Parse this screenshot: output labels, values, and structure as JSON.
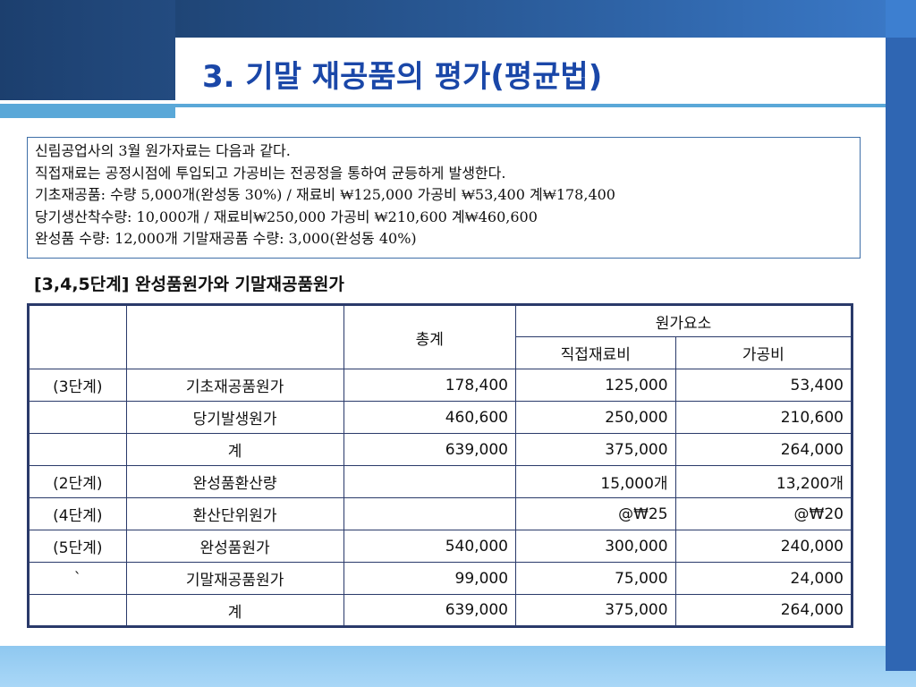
{
  "title": "3. 기말 재공품의 평가(평균법)",
  "info_lines": [
    "신림공업사의 3월 원가자료는 다음과 같다.",
    "직접재료는 공정시점에 투입되고 가공비는 전공정을 통하여 균등하게 발생한다.",
    "기초재공품: 수량 5,000개(완성동 30%) / 재료비 ₩125,000  가공비 ₩53,400  계₩178,400",
    "당기생산착수량: 10,000개 / 재료비₩250,000  가공비 ₩210,600 계₩460,600",
    "완성품 수량: 12,000개  기말재공품 수량: 3,000(완성동 40%)"
  ],
  "subtitle": "[3,4,5단계]  완성품원가와 기말재공품원가",
  "table": {
    "header": {
      "total": "총계",
      "elements": "원가요소",
      "material": "직접재료비",
      "conversion": "가공비"
    },
    "rows": [
      {
        "step": "(3단계)",
        "label": "기초재공품원가",
        "total": "178,400",
        "material": "125,000",
        "conversion": "53,400"
      },
      {
        "step": "",
        "label": "당기발생원가",
        "total": "460,600",
        "material": "250,000",
        "conversion": "210,600"
      },
      {
        "step": "",
        "label": "계",
        "total": "639,000",
        "material": "375,000",
        "conversion": "264,000"
      },
      {
        "step": "(2단계)",
        "label": "완성품환산량",
        "total": "",
        "material": "15,000개",
        "conversion": "13,200개"
      },
      {
        "step": "(4단계)",
        "label": "환산단위원가",
        "total": "",
        "material": "@₩25",
        "conversion": "@₩20"
      },
      {
        "step": "(5단계)",
        "label": "완성품원가",
        "total": "540,000",
        "material": "300,000",
        "conversion": "240,000"
      },
      {
        "step": "`",
        "label": "기말재공품원가",
        "total": "99,000",
        "material": "75,000",
        "conversion": "24,000"
      },
      {
        "step": "",
        "label": "계",
        "total": "639,000",
        "material": "375,000",
        "conversion": "264,000"
      }
    ]
  }
}
